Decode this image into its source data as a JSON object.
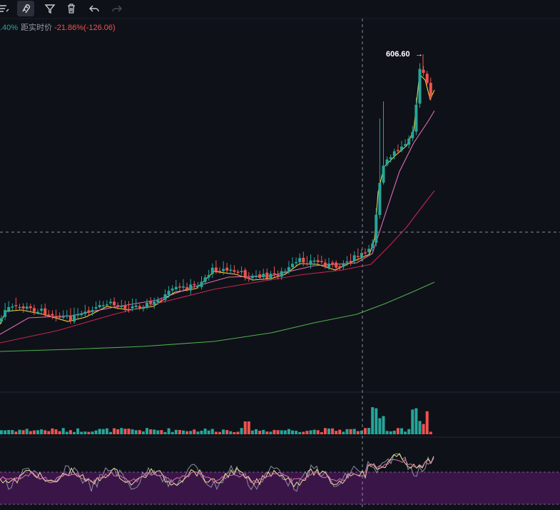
{
  "toolbar": {
    "icons": [
      "brush-list-icon",
      "magnet-icon",
      "filter-icon",
      "trash-icon",
      "undo-icon",
      "redo-icon"
    ]
  },
  "info": {
    "change_pct": ".40%",
    "distance_label": "距实时价",
    "distance_value": "-21.86%(-126.06)"
  },
  "price": {
    "high_label": "606.60",
    "high_arrow": "→"
  },
  "colors": {
    "background": "#0f1118",
    "up": "#26a69a",
    "down": "#ef5350",
    "ma_fast": "#f5d33a",
    "ma_mid": "#e06fb3",
    "ma_slow": "#c2264f",
    "ma_long": "#4caf50",
    "rsi_band": "#3a1648",
    "crosshair": "#8a8d96"
  }
}
